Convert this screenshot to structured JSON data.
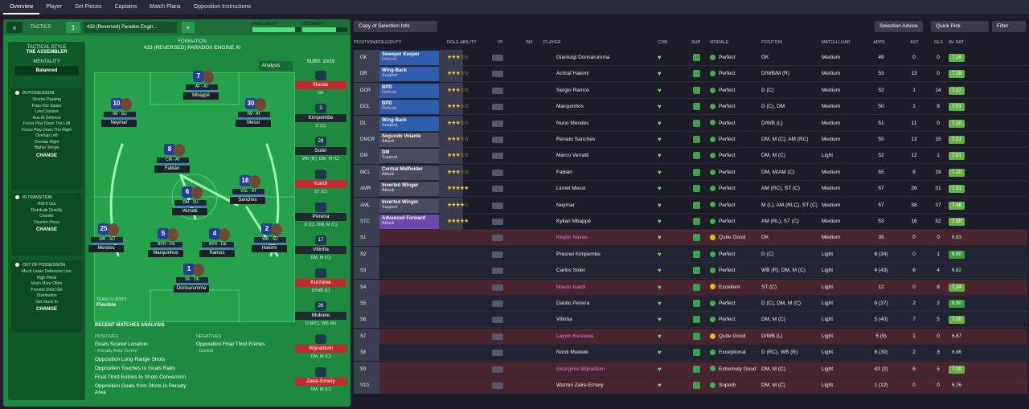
{
  "nav": [
    "Overview",
    "Player",
    "Set Pieces",
    "Captains",
    "Match Plans",
    "Opposition Instructions"
  ],
  "tactics": {
    "back": "«",
    "label": "TACTICS",
    "slot": "1",
    "name": "433 (Reversed) Paradox Engin...",
    "add": "+",
    "familiarity": "FAMILIARITY",
    "familiarity_pct": 0.88,
    "intensity": "INTENSITY",
    "intensity_pct": 0.75
  },
  "style": {
    "header": "TACTICAL STYLE",
    "value": "THE ASSEMBLER",
    "mentality_h": "MENTALITY",
    "mentality": "Balanced",
    "in_pos_h": "IN POSSESSION",
    "in_pos": [
      "Shorter Passing",
      "Pass Into Space",
      "Low Crosses",
      "Run At Defence",
      "Focus Play Down The Left",
      "Focus Play Down The Right",
      "Overlap Left",
      "Overlap Right",
      "Higher Tempo"
    ],
    "in_tr_h": "IN TRANSITION",
    "in_tr": [
      "Roll It Out",
      "Distribute Quickly",
      "Counter",
      "Counter-Press"
    ],
    "out_h": "OUT OF POSSESSION",
    "out": [
      "Much Lower Defensive Line",
      "High Press",
      "Much More Often",
      "Prevent Short GK",
      "Distribution",
      "Get Stuck In"
    ],
    "change": "CHANGE"
  },
  "formation": {
    "label": "FORMATION",
    "name": "433 (REVERSED) PARADOX ENGINE XI",
    "analysis": "Analysis"
  },
  "players": [
    {
      "num": "7",
      "role": "AF - AT",
      "name": "Mbappé"
    },
    {
      "num": "10",
      "role": "IW - SU",
      "name": "Neymar"
    },
    {
      "num": "30",
      "role": "IW - AT",
      "name": "Messi"
    },
    {
      "num": "8",
      "role": "CM - AT",
      "name": "Fabián"
    },
    {
      "num": "18",
      "role": "VOL - AT",
      "name": "Sanches"
    },
    {
      "num": "6",
      "role": "DM - SU",
      "name": "Verratti"
    },
    {
      "num": "25",
      "role": "WB - SU",
      "name": "Mendes"
    },
    {
      "num": "5",
      "role": "BPD - DE",
      "name": "Marquinhos"
    },
    {
      "num": "4",
      "role": "BPD - DE",
      "name": "Ramos"
    },
    {
      "num": "2",
      "role": "WB - SU",
      "name": "Hakimi"
    },
    {
      "num": "1",
      "role": "SK - DE",
      "name": "Donnarumma"
    }
  ],
  "fluidity": {
    "label": "TEAM FLUIDITY",
    "value": "Flexible"
  },
  "recent": {
    "title": "RECENT MATCHES ANALYSIS",
    "pos_h": "POSITIVES",
    "positives": [
      [
        "Goals Scored Location",
        "- Penalty Area Centre"
      ],
      [
        "Opposition Long-Range Shots",
        ""
      ],
      [
        "Opposition Touches to Goals Ratio",
        ""
      ],
      [
        "Final Third Entries to Shots Conversion",
        ""
      ],
      [
        "Opposition Goals from Shots in Penalty Area",
        ""
      ]
    ],
    "neg_h": "NEGATIVES",
    "negatives": [
      [
        "Opposition Final Third Entries",
        "- Central"
      ]
    ]
  },
  "subs": {
    "label": "SUBS:",
    "count": "15/15",
    "items": [
      {
        "kit": "",
        "name": "Navas",
        "pos": "GK",
        "red": true
      },
      {
        "kit": "3",
        "name": "Kimpembe",
        "pos": "D (C)",
        "red": false
      },
      {
        "kit": "28",
        "name": "Soler",
        "pos": "WB (R), DM, M (C)",
        "red": false
      },
      {
        "kit": "",
        "name": "Icardi",
        "pos": "ST (C)",
        "red": true
      },
      {
        "kit": "",
        "name": "Pereira",
        "pos": "D (C), DM, M (C)",
        "red": false
      },
      {
        "kit": "17",
        "name": "Vitinha",
        "pos": "DM, M (C)",
        "red": false
      },
      {
        "kit": "",
        "name": "Kurzawa",
        "pos": "D/WB (L)",
        "red": true
      },
      {
        "kit": "26",
        "name": "Mukiele",
        "pos": "D (RC), WB (R)",
        "red": false
      },
      {
        "kit": "",
        "name": "Wijnaldum",
        "pos": "DM, M (C)",
        "red": true
      },
      {
        "kit": "",
        "name": "Zaire-Emery",
        "pos": "DM, M (C)",
        "red": true
      }
    ]
  },
  "right": {
    "copy": "Copy of Selection Info",
    "advice": "Selection Advice",
    "quick": "Quick Pick",
    "filter": "Filter"
  },
  "cols": [
    "POSITION/ROLE/DUTY",
    "ROLE ABILITY",
    "PI",
    "INF",
    "PLAYER",
    "CON",
    "SHP",
    "MORALE",
    "POSITION",
    "MATCH LOAD",
    "APPS",
    "AST",
    "GLS",
    "AV RAT"
  ],
  "rows": [
    {
      "pos": "GK",
      "role": "Sweeper Keeper",
      "duty": "Defend",
      "stars": "★★★☆☆",
      "name": "Gianluigi Donnarumma",
      "morale": "Perfect",
      "position": "GK",
      "load": "Medium",
      "apps": "49",
      "ast": "0",
      "gls": "0",
      "rat": "7.24"
    },
    {
      "pos": "DR",
      "role": "Wing-Back",
      "duty": "Support",
      "stars": "★★★☆☆",
      "name": "Achraf Hakimi",
      "morale": "Perfect",
      "position": "D/WB/M (R)",
      "load": "Medium",
      "apps": "53",
      "ast": "13",
      "gls": "0",
      "rat": "7.29"
    },
    {
      "pos": "DCR",
      "role": "BPD",
      "duty": "Defend",
      "stars": "★★★☆☆",
      "name": "Sergio Ramos",
      "morale": "Perfect",
      "position": "D (C)",
      "load": "Medium",
      "apps": "52",
      "ast": "1",
      "gls": "14",
      "rat": "7.17"
    },
    {
      "pos": "DCL",
      "role": "BPD",
      "duty": "Defend",
      "stars": "★★★☆☆",
      "name": "Marquinhos",
      "morale": "Perfect",
      "position": "D (C), DM",
      "load": "Medium",
      "apps": "50",
      "ast": "1",
      "gls": "8",
      "rat": "7.01"
    },
    {
      "pos": "DL",
      "role": "Wing-Back",
      "duty": "Support",
      "stars": "★★★☆☆",
      "name": "Nuno Mendes",
      "morale": "Perfect",
      "position": "D/WB (L)",
      "load": "Medium",
      "apps": "51",
      "ast": "11",
      "gls": "0",
      "rat": "7.10"
    },
    {
      "pos": "DMCR",
      "role": "Segundo Volante",
      "duty": "Attack",
      "stars": "★★★☆☆",
      "name": "Renato Sanches",
      "morale": "Perfect",
      "position": "DM, M (C), AM (RC)",
      "load": "Medium",
      "apps": "55",
      "ast": "13",
      "gls": "15",
      "rat": "7.21"
    },
    {
      "pos": "DM",
      "role": "DM",
      "duty": "Support",
      "stars": "★★★☆☆",
      "name": "Marco Verratti",
      "morale": "Perfect",
      "position": "DM, M (C)",
      "load": "Light",
      "apps": "52",
      "ast": "12",
      "gls": "1",
      "rat": "7.01"
    },
    {
      "pos": "MCL",
      "role": "Central Midfielder",
      "duty": "Attack",
      "stars": "★★★☆☆",
      "name": "Fabián",
      "morale": "Perfect",
      "position": "DM, M/AM (C)",
      "load": "Medium",
      "apps": "55",
      "ast": "8",
      "gls": "19",
      "rat": "7.20"
    },
    {
      "pos": "AMR",
      "role": "Inverted Winger",
      "duty": "Attack",
      "stars": "★★★★★",
      "name": "Lionel Messi",
      "morale": "Perfect",
      "position": "AM (RC), ST (C)",
      "load": "Medium",
      "apps": "57",
      "ast": "26",
      "gls": "31",
      "rat": "7.51"
    },
    {
      "pos": "AML",
      "role": "Inverted Winger",
      "duty": "Support",
      "stars": "★★★★☆",
      "name": "Neymar",
      "morale": "Perfect",
      "position": "M (L), AM (RLC), ST (C)",
      "load": "Medium",
      "apps": "57",
      "ast": "38",
      "gls": "37",
      "rat": "7.46"
    },
    {
      "pos": "STC",
      "role": "Advanced Forward",
      "duty": "Attack",
      "stars": "★★★★★",
      "name": "Kylian Mbappé",
      "morale": "Perfect",
      "position": "AM (RL), ST (C)",
      "load": "Medium",
      "apps": "53",
      "ast": "16",
      "gls": "52",
      "rat": "7.99"
    },
    {
      "pos": "S1",
      "name": "Keylor Navas",
      "morale": "Quite Good",
      "position": "GK",
      "load": "Medium",
      "apps": "35",
      "ast": "0",
      "gls": "0",
      "rat": "6.83"
    },
    {
      "pos": "S2",
      "name": "Presnel Kimpembe",
      "morale": "Perfect",
      "position": "D (C)",
      "load": "Light",
      "apps": "8 (34)",
      "ast": "0",
      "gls": "1",
      "rat": "6.90"
    },
    {
      "pos": "S3",
      "name": "Carlos Soler",
      "morale": "Perfect",
      "position": "WB (R), DM, M (C)",
      "load": "Light",
      "apps": "4 (43)",
      "ast": "6",
      "gls": "4",
      "rat": "6.82"
    },
    {
      "pos": "S4",
      "name": "Mauro Icardi",
      "morale": "Excellent",
      "position": "ST (C)",
      "load": "Light",
      "apps": "12",
      "ast": "0",
      "gls": "8",
      "rat": "7.24"
    },
    {
      "pos": "S5",
      "name": "Danilo Pereira",
      "morale": "Perfect",
      "position": "D (C), DM, M (C)",
      "load": "Light",
      "apps": "9 (37)",
      "ast": "2",
      "gls": "2",
      "rat": "6.90"
    },
    {
      "pos": "S6",
      "name": "Vitinha",
      "morale": "Perfect",
      "position": "DM, M (C)",
      "load": "Light",
      "apps": "5 (40)",
      "ast": "7",
      "gls": "5",
      "rat": "7.09"
    },
    {
      "pos": "S7",
      "name": "Layvin Kurzawa",
      "morale": "Quite Good",
      "position": "D/WB (L)",
      "load": "Light",
      "apps": "5 (9)",
      "ast": "1",
      "gls": "0",
      "rat": "6.67"
    },
    {
      "pos": "S8",
      "name": "Nordi Mukiele",
      "morale": "Exceptional",
      "position": "D (RC), WB (R)",
      "load": "Light",
      "apps": "8 (30)",
      "ast": "2",
      "gls": "3",
      "rat": "6.86"
    },
    {
      "pos": "S9",
      "name": "Georginio Wijnaldum",
      "morale": "Extremely Good",
      "position": "DM, M (C)",
      "load": "Light",
      "apps": "43 (2)",
      "ast": "6",
      "gls": "5",
      "rat": "7.10"
    },
    {
      "pos": "S10",
      "name": "Warren Zaire-Emery",
      "morale": "Superb",
      "position": "DM, M (C)",
      "load": "Light",
      "apps": "1 (12)",
      "ast": "0",
      "gls": "0",
      "rat": "6.76"
    }
  ]
}
